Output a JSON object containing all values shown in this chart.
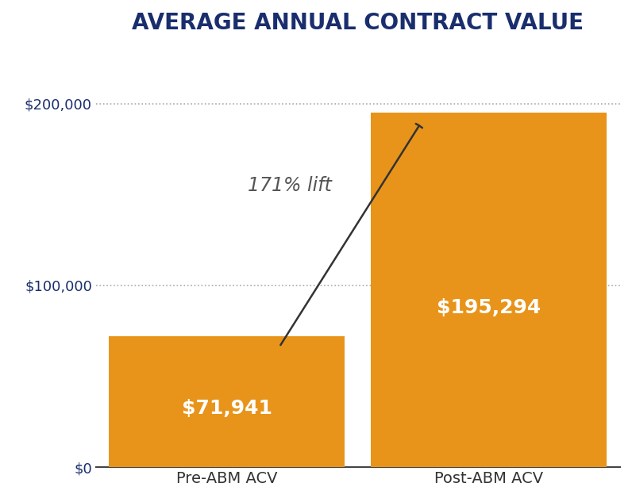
{
  "title": "AVERAGE ANNUAL CONTRACT VALUE",
  "title_color": "#1a2e6e",
  "title_fontsize": 20,
  "categories": [
    "Pre-ABM ACV",
    "Post-ABM ACV"
  ],
  "values": [
    71941,
    195294
  ],
  "bar_color": "#e8941a",
  "bar_labels": [
    "$71,941",
    "$195,294"
  ],
  "bar_label_color": "#ffffff",
  "bar_label_fontsize": 18,
  "lift_text": "171% lift",
  "lift_text_color": "#555555",
  "lift_fontsize": 17,
  "ytick_labels": [
    "$0",
    "$100,000",
    "$200,000"
  ],
  "ytick_values": [
    0,
    100000,
    200000
  ],
  "ytick_color": "#1a2e6e",
  "xtick_color": "#333333",
  "ylim": [
    0,
    230000
  ],
  "grid_color": "#aaaaaa",
  "background_color": "#ffffff",
  "bar_width": 0.45,
  "arrow_color": "#333333"
}
